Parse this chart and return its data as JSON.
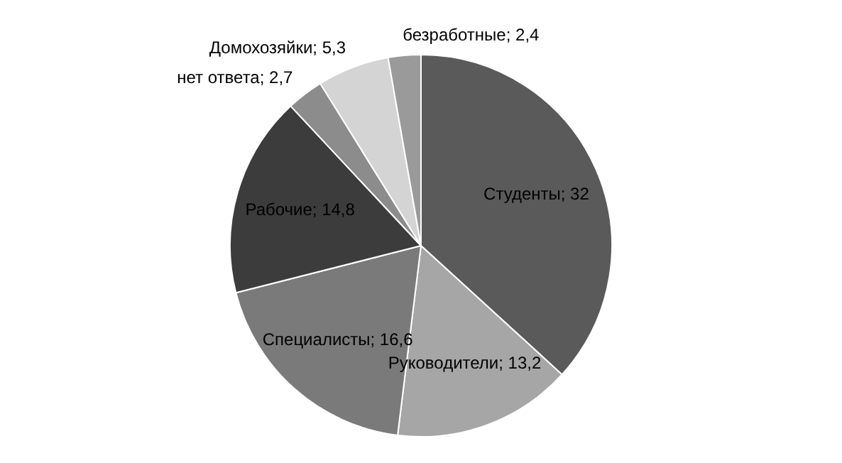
{
  "chart_data": {
    "type": "pie",
    "categories": [
      "Студенты",
      "Руководители",
      "Специалисты",
      "Рабочие",
      "нет ответа",
      "Домохозяйки",
      "безработные"
    ],
    "data_labels": true,
    "values": [
      32,
      13.2,
      16.6,
      14.8,
      2.7,
      5.3,
      2.4
    ],
    "colors": [
      "#5a5a5a",
      "#a6a6a6",
      "#7a7a7a",
      "#3c3c3c",
      "#8c8c8c",
      "#d4d4d4",
      "#9a9a9a"
    ],
    "value_labels": [
      "32",
      "13,2",
      "16,6",
      "14,8",
      "2,7",
      "5,3",
      "2,4"
    ],
    "legend": false
  }
}
